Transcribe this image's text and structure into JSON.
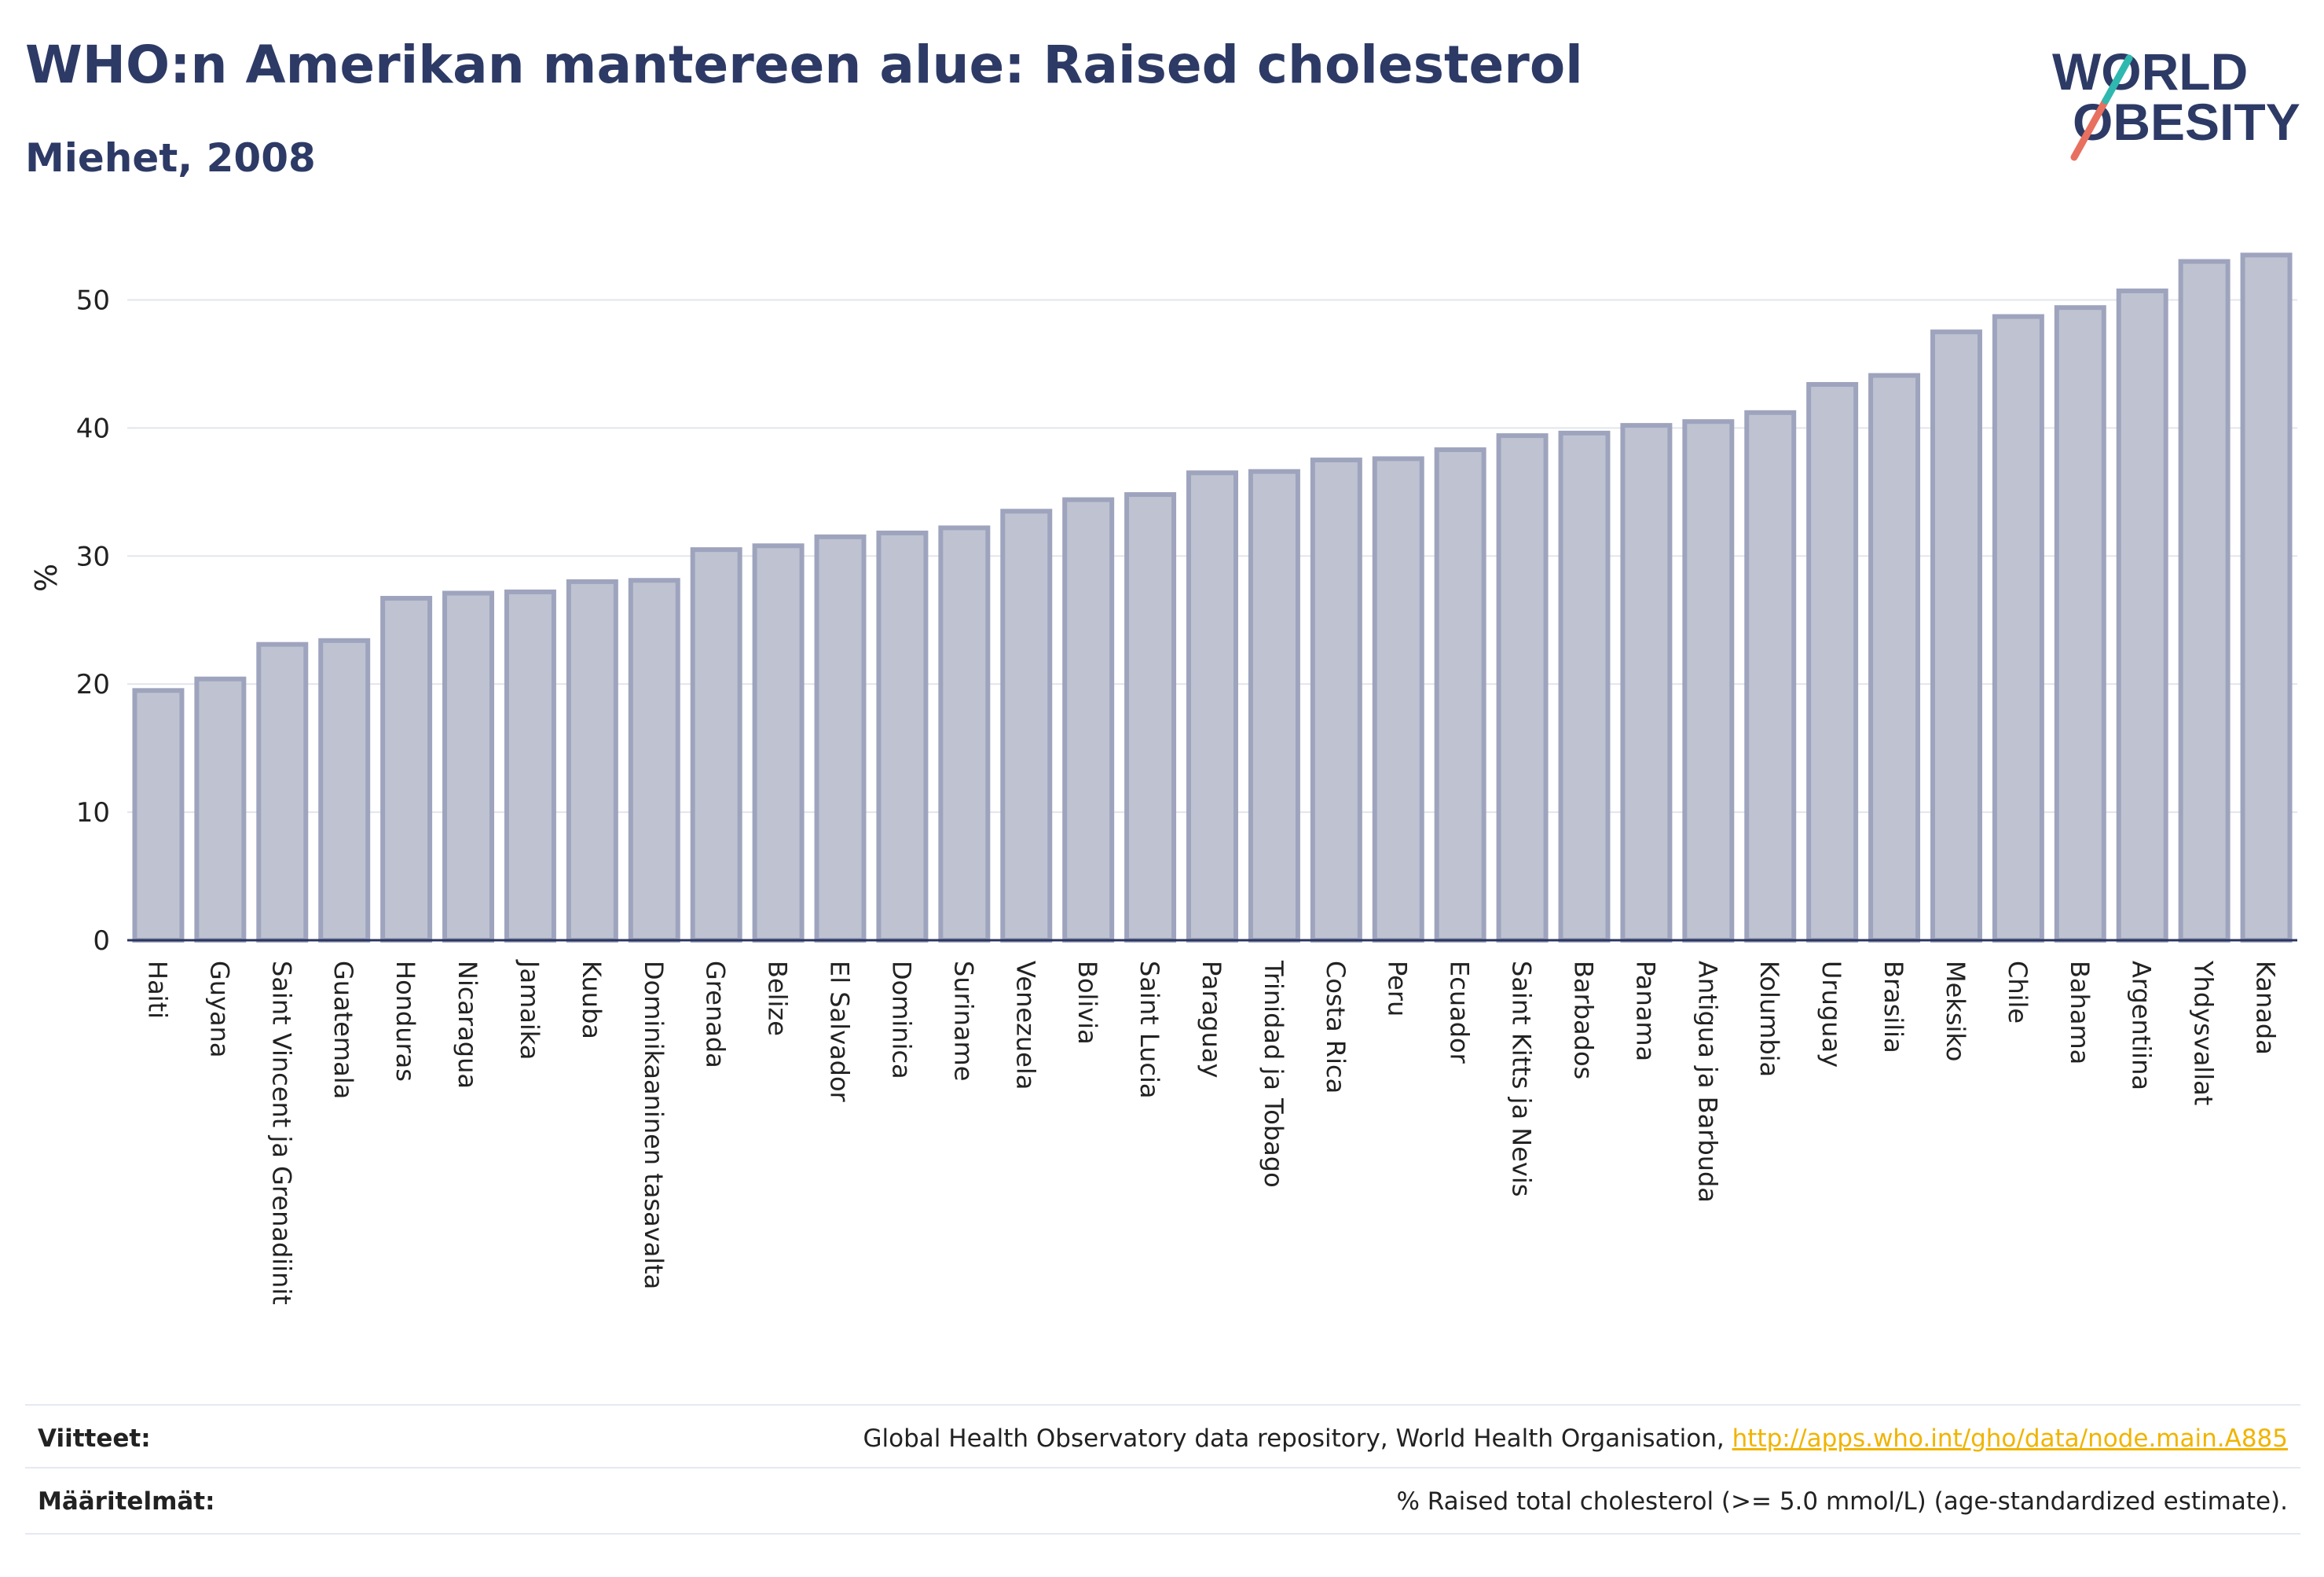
{
  "header": {
    "title": "WHO:n Amerikan mantereen alue: Raised cholesterol",
    "subtitle": "Miehet, 2008"
  },
  "logo": {
    "line1": "WORLD",
    "line2": "OBESITY"
  },
  "chart_data": {
    "type": "bar",
    "ylabel": "%",
    "ylim": [
      0,
      55
    ],
    "yticks": [
      0,
      10,
      20,
      30,
      40,
      50
    ],
    "grid": true,
    "bar_color": "#bfc3d1",
    "bar_edge_color": "#9ea4bd",
    "categories": [
      "Haiti",
      "Guyana",
      "Saint Vincent ja Grenadiinit",
      "Guatemala",
      "Honduras",
      "Nicaragua",
      "Jamaika",
      "Kuuba",
      "Dominikaaninen tasavalta",
      "Grenada",
      "Belize",
      "El Salvador",
      "Dominica",
      "Suriname",
      "Venezuela",
      "Bolivia",
      "Saint Lucia",
      "Paraguay",
      "Trinidad ja Tobago",
      "Costa Rica",
      "Peru",
      "Ecuador",
      "Saint Kitts ja Nevis",
      "Barbados",
      "Panama",
      "Antigua ja Barbuda",
      "Kolumbia",
      "Uruguay",
      "Brasilia",
      "Meksiko",
      "Chile",
      "Bahama",
      "Argentiina",
      "Yhdysvallat",
      "Kanada"
    ],
    "values": [
      19.5,
      20.4,
      23.1,
      23.4,
      26.7,
      27.1,
      27.2,
      28.0,
      28.1,
      30.5,
      30.8,
      31.5,
      31.8,
      32.2,
      33.5,
      34.4,
      34.8,
      36.5,
      36.6,
      37.5,
      37.6,
      38.3,
      39.4,
      39.6,
      40.2,
      40.5,
      41.2,
      43.4,
      44.1,
      47.5,
      48.7,
      49.4,
      50.7,
      53.0,
      53.5
    ]
  },
  "footer": {
    "sources_label": "Viitteet:",
    "sources_text": "Global Health Observatory data repository, World Health Organisation, ",
    "sources_link": "http://apps.who.int/gho/data/node.main.A885",
    "definitions_label": "Määritelmät:",
    "definitions_text": "% Raised total cholesterol (>= 5.0 mmol/L) (age-standardized estimate)."
  }
}
